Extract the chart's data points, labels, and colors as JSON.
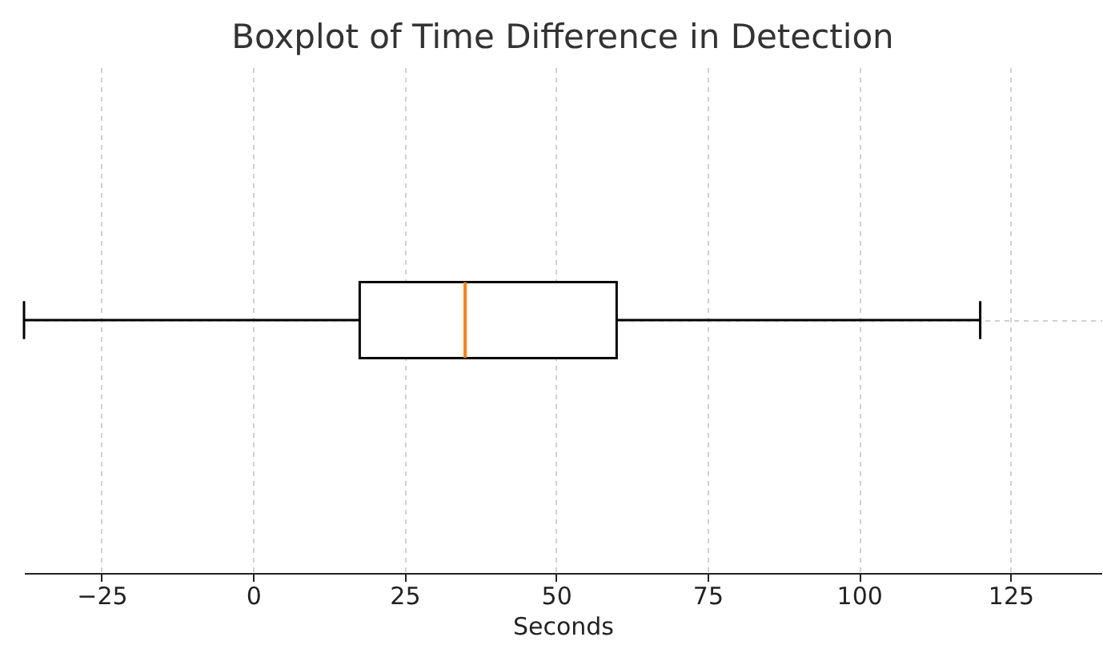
{
  "chart_data": {
    "type": "box",
    "orientation": "horizontal",
    "title": "Boxplot of Time Difference in Detection",
    "xlabel": "Seconds",
    "categories": [
      null
    ],
    "boxes": [
      {
        "low": -37.8,
        "q1": 17.6,
        "median": 35,
        "q3": 60,
        "high": 120
      }
    ],
    "color": "#000000",
    "xlim": [
      -37.8,
      140
    ],
    "xticks": [
      -25,
      0,
      25,
      50,
      75,
      100,
      125
    ],
    "grid": true
  }
}
